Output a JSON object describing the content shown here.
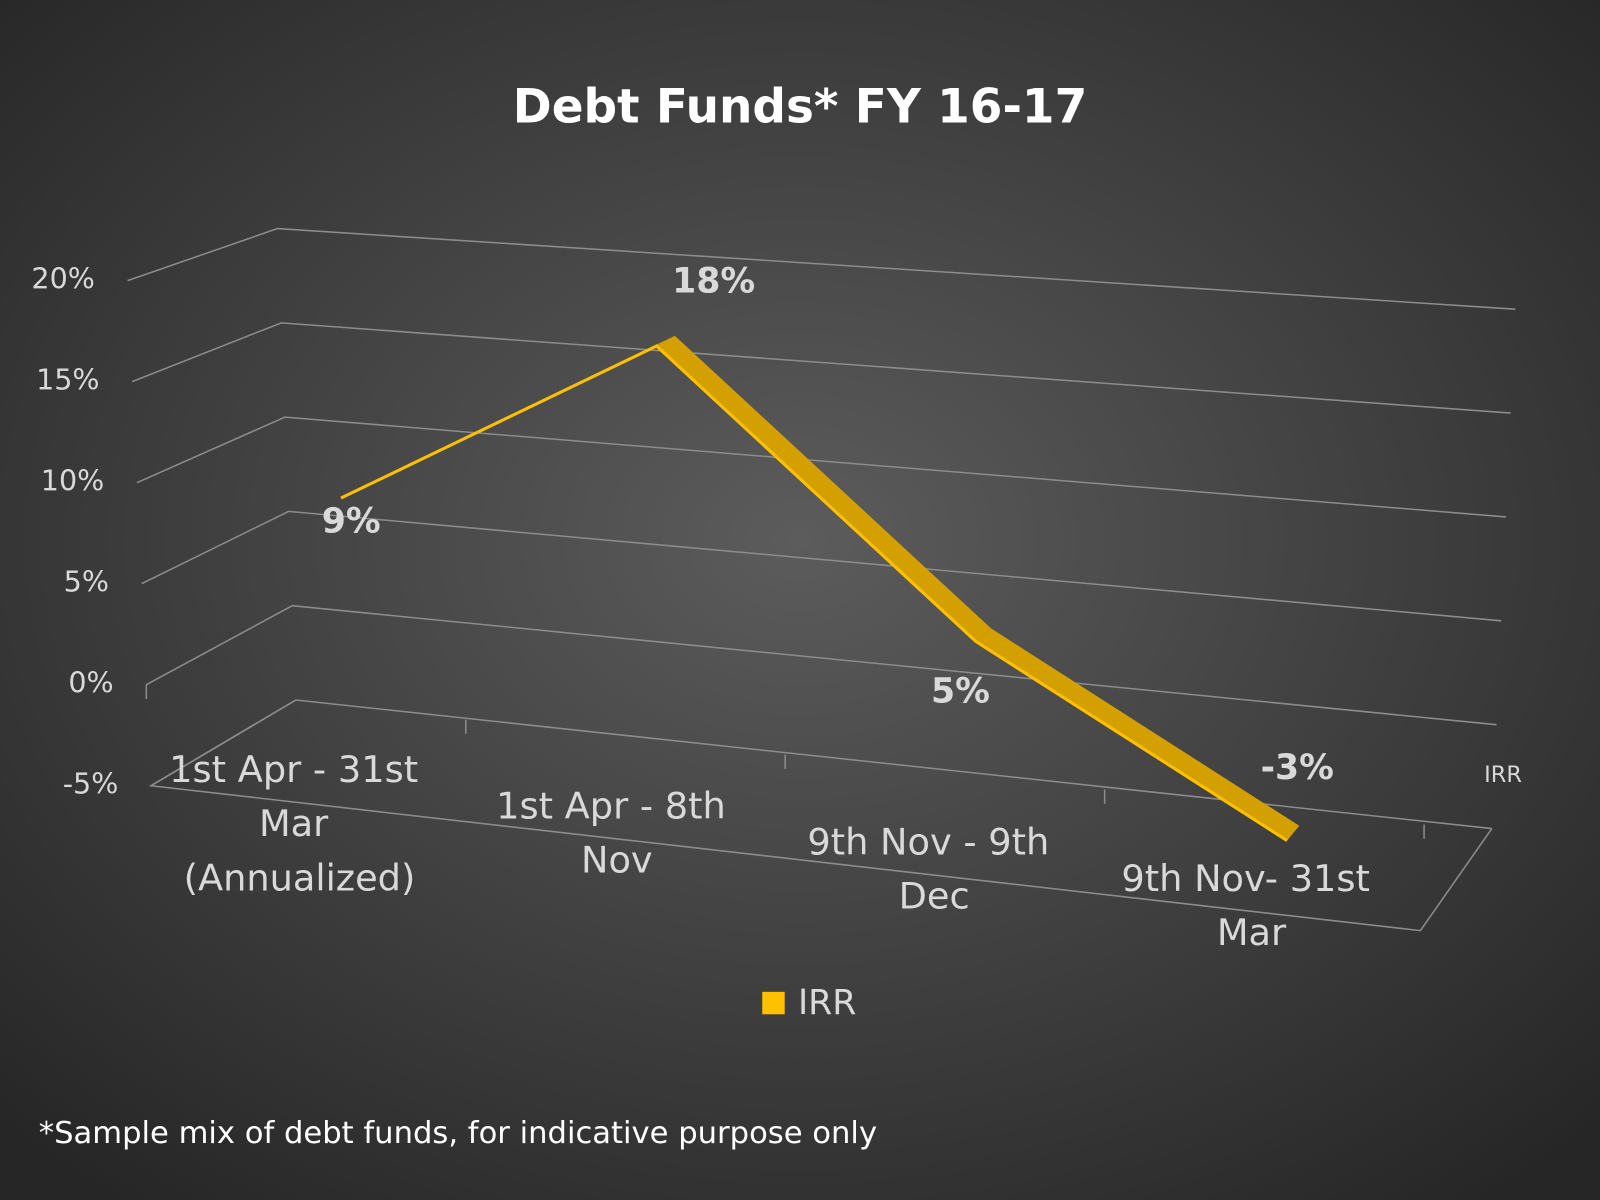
{
  "chart_data": {
    "type": "line3d",
    "title": "Debt Funds* FY 16-17",
    "categories": [
      "1st Apr - 31st Mar (Annualized)",
      "1st Apr - 8th Nov",
      "9th Nov - 9th Dec",
      "9th Nov- 31st Mar"
    ],
    "series": [
      {
        "name": "IRR",
        "color": "#ffc000",
        "values": [
          9,
          18,
          5,
          -3
        ],
        "value_labels": [
          "9%",
          "18%",
          "5%",
          "-3%"
        ]
      }
    ],
    "ylim": [
      -5,
      20
    ],
    "yticks": [
      {
        "value": -5,
        "label": "-5%"
      },
      {
        "value": 0,
        "label": "0%"
      },
      {
        "value": 5,
        "label": "5%"
      },
      {
        "value": 10,
        "label": "10%"
      },
      {
        "value": 15,
        "label": "15%"
      },
      {
        "value": 20,
        "label": "20%"
      }
    ],
    "grid": true,
    "legend": "bottom",
    "footnote": "*Sample mix of debt funds, for indicative purpose only"
  }
}
